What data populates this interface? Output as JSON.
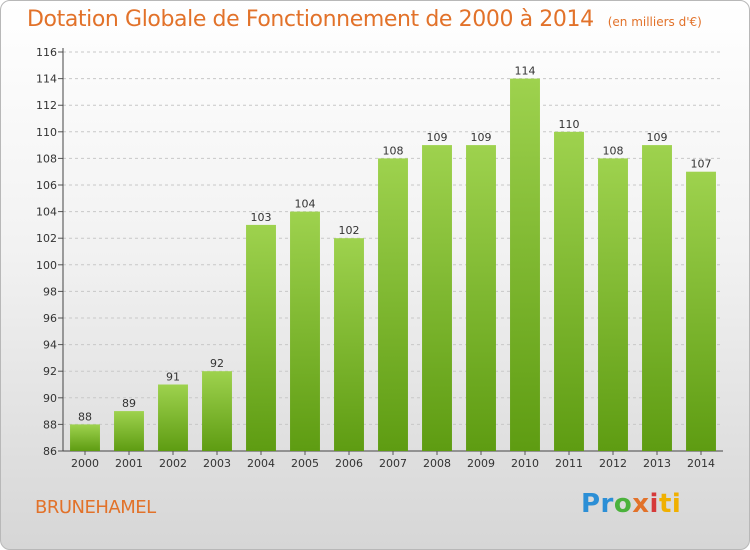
{
  "header": {
    "title": "Dotation Globale de Fonctionnement de 2000 à 2014",
    "subtitle": "(en milliers d'€)"
  },
  "footer": {
    "commune": "BRUNEHAMEL",
    "brand": [
      "Pr",
      "o",
      "x",
      "i",
      "ti"
    ]
  },
  "colors": {
    "bar_top": "#9ed24e",
    "bar_bottom": "#5e9c12",
    "title": "#e2722a"
  },
  "chart_data": {
    "type": "bar",
    "title": "Dotation Globale de Fonctionnement de 2000 à 2014",
    "subtitle": "(en milliers d'€)",
    "xlabel": "",
    "ylabel": "",
    "categories": [
      "2000",
      "2001",
      "2002",
      "2003",
      "2004",
      "2005",
      "2006",
      "2007",
      "2008",
      "2009",
      "2010",
      "2011",
      "2012",
      "2013",
      "2014"
    ],
    "values": [
      88,
      89,
      91,
      92,
      103,
      104,
      102,
      108,
      109,
      109,
      114,
      110,
      108,
      109,
      107
    ],
    "ylim": [
      86,
      116
    ],
    "yticks": [
      86,
      88,
      90,
      92,
      94,
      96,
      98,
      100,
      102,
      104,
      106,
      108,
      110,
      112,
      114,
      116
    ],
    "grid": true,
    "data_labels": true
  }
}
